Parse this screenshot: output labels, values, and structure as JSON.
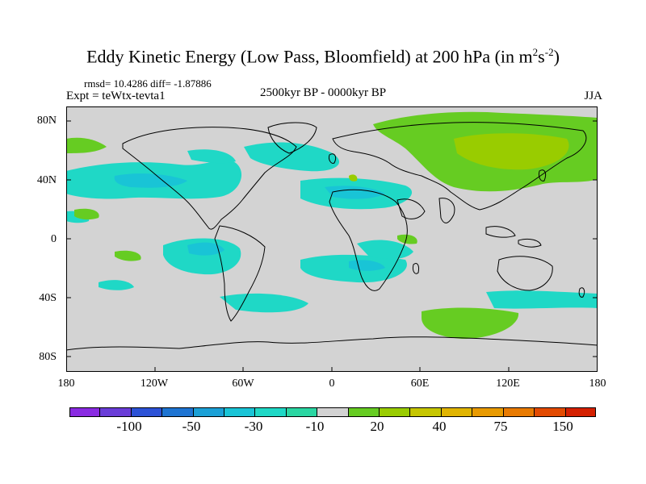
{
  "title": {
    "main": "Eddy Kinetic Energy (Low Pass, Bloomfield) at 200 hPa (in m",
    "sup1": "2",
    "mid": "s",
    "sup2": "-2",
    "end": ")"
  },
  "stats": "rmsd= 10.4286 diff= -1.87886",
  "expt": "Expt = teWtx-tevta1",
  "period": "2500kyr BP - 0000kyr BP",
  "season": "JJA",
  "lat_labels": [
    "80N",
    "40N",
    "0",
    "40S",
    "80S"
  ],
  "lon_labels": [
    "180",
    "120W",
    "60W",
    "0",
    "60E",
    "120E",
    "180"
  ],
  "colorbar": {
    "colors": [
      "#8a2be2",
      "#6a3dd8",
      "#2c52d6",
      "#1e74d2",
      "#1ba0d6",
      "#19c4d6",
      "#1fd8c6",
      "#2ad6a2",
      "#d2d2d2",
      "#66cc22",
      "#99cc00",
      "#c6c600",
      "#e0b400",
      "#e89a00",
      "#e87a00",
      "#e24a00",
      "#d42000"
    ],
    "labels": [
      "-100",
      "-50",
      "-30",
      "-10",
      "20",
      "40",
      "75",
      "150"
    ]
  },
  "map_colors": {
    "background": "#d3d3d3",
    "negative_light": "#1fd8c6",
    "negative_mid": "#19c4d6",
    "positive_light": "#66cc22",
    "positive_mid": "#99cc00"
  }
}
